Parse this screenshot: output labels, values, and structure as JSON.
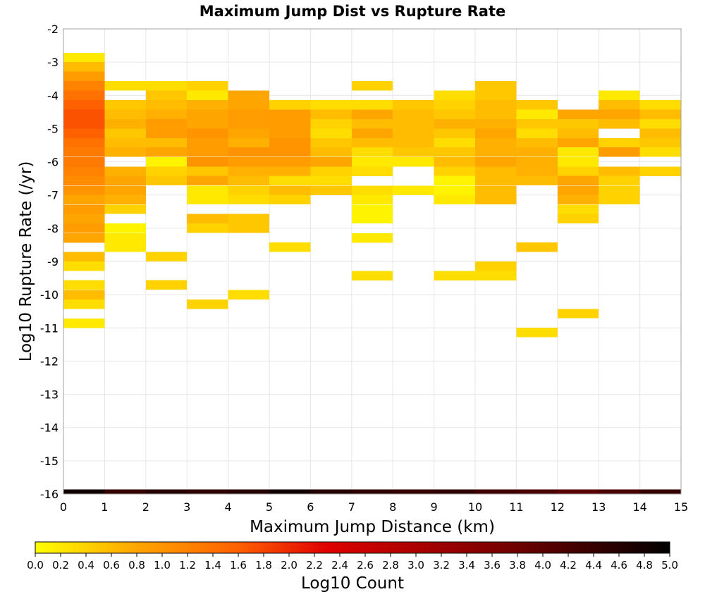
{
  "chart_data": {
    "type": "heatmap",
    "title": "Maximum Jump Dist vs Rupture Rate",
    "xlabel": "Maximum Jump Distance (km)",
    "ylabel": "Log10 Rupture Rate (/yr)",
    "xlim": [
      0,
      15
    ],
    "ylim": [
      -16,
      -2
    ],
    "x_ticks": [
      "0",
      "1",
      "2",
      "3",
      "4",
      "5",
      "6",
      "7",
      "8",
      "9",
      "10",
      "11",
      "12",
      "13",
      "14",
      "15"
    ],
    "y_ticks": [
      "-2",
      "-3",
      "-4",
      "-5",
      "-6",
      "-7",
      "-8",
      "-9",
      "-10",
      "-11",
      "-12",
      "-13",
      "-14",
      "-15",
      "-16"
    ],
    "grid": true,
    "x_bin_width": 1,
    "y_bin_height": 0.2857,
    "colorbar": {
      "label": "Log10 Count",
      "range": [
        0.0,
        5.0
      ],
      "ticks": [
        "0.0",
        "0.2",
        "0.4",
        "0.6",
        "0.8",
        "1.0",
        "1.2",
        "1.4",
        "1.6",
        "1.8",
        "2.0",
        "2.2",
        "2.4",
        "2.6",
        "2.8",
        "3.0",
        "3.2",
        "3.4",
        "3.6",
        "3.8",
        "4.0",
        "4.2",
        "4.4",
        "4.6",
        "4.8",
        "5.0"
      ],
      "colors": [
        "#ffff00",
        "#ffa500",
        "#ff6000",
        "#e00000",
        "#800000",
        "#000000"
      ]
    },
    "cells": [
      {
        "x": 0,
        "y": -2.86,
        "v": 0.2
      },
      {
        "x": 0,
        "y": -3.14,
        "v": 0.6
      },
      {
        "x": 0,
        "y": -3.43,
        "v": 0.9
      },
      {
        "x": 0,
        "y": -3.71,
        "v": 1.2
      },
      {
        "x": 0,
        "y": -4.0,
        "v": 1.4
      },
      {
        "x": 0,
        "y": -4.29,
        "v": 1.6
      },
      {
        "x": 0,
        "y": -4.57,
        "v": 1.7
      },
      {
        "x": 0,
        "y": -4.86,
        "v": 1.7
      },
      {
        "x": 0,
        "y": -5.14,
        "v": 1.6
      },
      {
        "x": 0,
        "y": -5.43,
        "v": 1.4
      },
      {
        "x": 0,
        "y": -5.71,
        "v": 1.3
      },
      {
        "x": 0,
        "y": -6.0,
        "v": 1.3
      },
      {
        "x": 0,
        "y": -6.29,
        "v": 1.2
      },
      {
        "x": 0,
        "y": -6.57,
        "v": 1.1
      },
      {
        "x": 0,
        "y": -6.86,
        "v": 1.0
      },
      {
        "x": 0,
        "y": -7.14,
        "v": 0.8
      },
      {
        "x": 0,
        "y": -7.43,
        "v": 0.9
      },
      {
        "x": 0,
        "y": -7.71,
        "v": 0.8
      },
      {
        "x": 0,
        "y": -8.0,
        "v": 0.9
      },
      {
        "x": 0,
        "y": -8.29,
        "v": 0.8
      },
      {
        "x": 0,
        "y": -8.86,
        "v": 0.6
      },
      {
        "x": 0,
        "y": -9.14,
        "v": 0.3
      },
      {
        "x": 0,
        "y": -9.71,
        "v": 0.3
      },
      {
        "x": 0,
        "y": -10.0,
        "v": 0.6
      },
      {
        "x": 0,
        "y": -10.29,
        "v": 0.3
      },
      {
        "x": 0,
        "y": -10.86,
        "v": 0.2
      },
      {
        "x": 0,
        "y": -16.0,
        "v": 4.8
      },
      {
        "x": 1,
        "y": -3.71,
        "v": 0.3
      },
      {
        "x": 1,
        "y": -4.29,
        "v": 0.5
      },
      {
        "x": 1,
        "y": -4.57,
        "v": 0.6
      },
      {
        "x": 1,
        "y": -4.86,
        "v": 0.7
      },
      {
        "x": 1,
        "y": -5.14,
        "v": 0.5
      },
      {
        "x": 1,
        "y": -5.43,
        "v": 0.6
      },
      {
        "x": 1,
        "y": -5.71,
        "v": 0.7
      },
      {
        "x": 1,
        "y": -6.29,
        "v": 0.7
      },
      {
        "x": 1,
        "y": -6.57,
        "v": 0.8
      },
      {
        "x": 1,
        "y": -6.86,
        "v": 0.8
      },
      {
        "x": 1,
        "y": -7.14,
        "v": 0.7
      },
      {
        "x": 1,
        "y": -7.43,
        "v": 0.4
      },
      {
        "x": 1,
        "y": -8.0,
        "v": 0.1
      },
      {
        "x": 1,
        "y": -8.29,
        "v": 0.2
      },
      {
        "x": 1,
        "y": -8.57,
        "v": 0.2
      },
      {
        "x": 1,
        "y": -16.0,
        "v": 4.4
      },
      {
        "x": 2,
        "y": -3.71,
        "v": 0.3
      },
      {
        "x": 2,
        "y": -4.0,
        "v": 0.5
      },
      {
        "x": 2,
        "y": -4.29,
        "v": 0.6
      },
      {
        "x": 2,
        "y": -4.57,
        "v": 0.7
      },
      {
        "x": 2,
        "y": -4.86,
        "v": 0.9
      },
      {
        "x": 2,
        "y": -5.14,
        "v": 0.9
      },
      {
        "x": 2,
        "y": -5.43,
        "v": 0.6
      },
      {
        "x": 2,
        "y": -5.71,
        "v": 0.8
      },
      {
        "x": 2,
        "y": -6.0,
        "v": 0.1
      },
      {
        "x": 2,
        "y": -6.29,
        "v": 0.4
      },
      {
        "x": 2,
        "y": -6.57,
        "v": 0.5
      },
      {
        "x": 2,
        "y": -8.86,
        "v": 0.4
      },
      {
        "x": 2,
        "y": -9.71,
        "v": 0.4
      },
      {
        "x": 2,
        "y": -16.0,
        "v": 4.6
      },
      {
        "x": 3,
        "y": -3.71,
        "v": 0.4
      },
      {
        "x": 3,
        "y": -4.0,
        "v": 0.2
      },
      {
        "x": 3,
        "y": -4.29,
        "v": 0.7
      },
      {
        "x": 3,
        "y": -4.57,
        "v": 0.8
      },
      {
        "x": 3,
        "y": -4.86,
        "v": 0.8
      },
      {
        "x": 3,
        "y": -5.14,
        "v": 1.0
      },
      {
        "x": 3,
        "y": -5.43,
        "v": 0.9
      },
      {
        "x": 3,
        "y": -5.71,
        "v": 0.9
      },
      {
        "x": 3,
        "y": -6.0,
        "v": 1.0
      },
      {
        "x": 3,
        "y": -6.29,
        "v": 0.5
      },
      {
        "x": 3,
        "y": -6.57,
        "v": 0.8
      },
      {
        "x": 3,
        "y": -6.86,
        "v": 0.2
      },
      {
        "x": 3,
        "y": -7.14,
        "v": 0.2
      },
      {
        "x": 3,
        "y": -7.71,
        "v": 0.6
      },
      {
        "x": 3,
        "y": -8.0,
        "v": 0.4
      },
      {
        "x": 3,
        "y": -10.29,
        "v": 0.4
      },
      {
        "x": 3,
        "y": -16.0,
        "v": 4.5
      },
      {
        "x": 4,
        "y": -4.0,
        "v": 0.8
      },
      {
        "x": 4,
        "y": -4.29,
        "v": 0.8
      },
      {
        "x": 4,
        "y": -4.57,
        "v": 0.9
      },
      {
        "x": 4,
        "y": -4.86,
        "v": 0.9
      },
      {
        "x": 4,
        "y": -5.14,
        "v": 0.8
      },
      {
        "x": 4,
        "y": -5.43,
        "v": 0.7
      },
      {
        "x": 4,
        "y": -5.71,
        "v": 1.0
      },
      {
        "x": 4,
        "y": -6.0,
        "v": 0.9
      },
      {
        "x": 4,
        "y": -6.29,
        "v": 0.7
      },
      {
        "x": 4,
        "y": -6.57,
        "v": 0.6
      },
      {
        "x": 4,
        "y": -6.86,
        "v": 0.4
      },
      {
        "x": 4,
        "y": -7.14,
        "v": 0.3
      },
      {
        "x": 4,
        "y": -7.71,
        "v": 0.5
      },
      {
        "x": 4,
        "y": -8.0,
        "v": 0.5
      },
      {
        "x": 4,
        "y": -10.0,
        "v": 0.3
      },
      {
        "x": 4,
        "y": -16.0,
        "v": 4.6
      },
      {
        "x": 5,
        "y": -4.29,
        "v": 0.4
      },
      {
        "x": 5,
        "y": -4.57,
        "v": 0.9
      },
      {
        "x": 5,
        "y": -4.86,
        "v": 0.9
      },
      {
        "x": 5,
        "y": -5.14,
        "v": 0.9
      },
      {
        "x": 5,
        "y": -5.43,
        "v": 1.0
      },
      {
        "x": 5,
        "y": -5.71,
        "v": 1.0
      },
      {
        "x": 5,
        "y": -6.0,
        "v": 0.9
      },
      {
        "x": 5,
        "y": -6.29,
        "v": 0.7
      },
      {
        "x": 5,
        "y": -6.57,
        "v": 0.3
      },
      {
        "x": 5,
        "y": -6.86,
        "v": 0.6
      },
      {
        "x": 5,
        "y": -7.14,
        "v": 0.4
      },
      {
        "x": 5,
        "y": -8.57,
        "v": 0.3
      },
      {
        "x": 5,
        "y": -16.0,
        "v": 4.8
      },
      {
        "x": 6,
        "y": -4.29,
        "v": 0.3
      },
      {
        "x": 6,
        "y": -4.57,
        "v": 0.6
      },
      {
        "x": 6,
        "y": -4.86,
        "v": 0.4
      },
      {
        "x": 6,
        "y": -5.14,
        "v": 0.3
      },
      {
        "x": 6,
        "y": -5.43,
        "v": 0.5
      },
      {
        "x": 6,
        "y": -5.71,
        "v": 0.6
      },
      {
        "x": 6,
        "y": -6.0,
        "v": 0.8
      },
      {
        "x": 6,
        "y": -6.29,
        "v": 0.4
      },
      {
        "x": 6,
        "y": -6.57,
        "v": 0.3
      },
      {
        "x": 6,
        "y": -6.86,
        "v": 0.5
      },
      {
        "x": 6,
        "y": -16.0,
        "v": 4.6
      },
      {
        "x": 7,
        "y": -3.71,
        "v": 0.4
      },
      {
        "x": 7,
        "y": -4.29,
        "v": 0.3
      },
      {
        "x": 7,
        "y": -4.57,
        "v": 0.8
      },
      {
        "x": 7,
        "y": -4.86,
        "v": 0.6
      },
      {
        "x": 7,
        "y": -5.14,
        "v": 0.8
      },
      {
        "x": 7,
        "y": -5.43,
        "v": 0.6
      },
      {
        "x": 7,
        "y": -5.71,
        "v": 0.3
      },
      {
        "x": 7,
        "y": -6.0,
        "v": 0.2
      },
      {
        "x": 7,
        "y": -6.29,
        "v": 0.3
      },
      {
        "x": 7,
        "y": -6.86,
        "v": 0.3
      },
      {
        "x": 7,
        "y": -7.14,
        "v": 0.2
      },
      {
        "x": 7,
        "y": -7.43,
        "v": 0.1
      },
      {
        "x": 7,
        "y": -7.71,
        "v": 0.1
      },
      {
        "x": 7,
        "y": -8.29,
        "v": 0.2
      },
      {
        "x": 7,
        "y": -9.43,
        "v": 0.3
      },
      {
        "x": 7,
        "y": -16.0,
        "v": 4.5
      },
      {
        "x": 8,
        "y": -4.29,
        "v": 0.5
      },
      {
        "x": 8,
        "y": -4.57,
        "v": 0.6
      },
      {
        "x": 8,
        "y": -4.86,
        "v": 0.6
      },
      {
        "x": 8,
        "y": -5.14,
        "v": 0.6
      },
      {
        "x": 8,
        "y": -5.43,
        "v": 0.6
      },
      {
        "x": 8,
        "y": -5.71,
        "v": 0.5
      },
      {
        "x": 8,
        "y": -6.0,
        "v": 0.2
      },
      {
        "x": 8,
        "y": -6.86,
        "v": 0.2
      },
      {
        "x": 8,
        "y": -16.0,
        "v": 4.4
      },
      {
        "x": 9,
        "y": -4.0,
        "v": 0.3
      },
      {
        "x": 9,
        "y": -4.29,
        "v": 0.4
      },
      {
        "x": 9,
        "y": -4.57,
        "v": 0.5
      },
      {
        "x": 9,
        "y": -4.86,
        "v": 0.7
      },
      {
        "x": 9,
        "y": -5.14,
        "v": 0.5
      },
      {
        "x": 9,
        "y": -5.43,
        "v": 0.3
      },
      {
        "x": 9,
        "y": -5.71,
        "v": 0.5
      },
      {
        "x": 9,
        "y": -6.0,
        "v": 0.6
      },
      {
        "x": 9,
        "y": -6.29,
        "v": 0.4
      },
      {
        "x": 9,
        "y": -6.57,
        "v": 0.1
      },
      {
        "x": 9,
        "y": -6.86,
        "v": 0.1
      },
      {
        "x": 9,
        "y": -7.14,
        "v": 0.2
      },
      {
        "x": 9,
        "y": -9.43,
        "v": 0.3
      },
      {
        "x": 9,
        "y": -16.0,
        "v": 4.5
      },
      {
        "x": 10,
        "y": -3.71,
        "v": 0.5
      },
      {
        "x": 10,
        "y": -4.0,
        "v": 0.5
      },
      {
        "x": 10,
        "y": -4.29,
        "v": 0.6
      },
      {
        "x": 10,
        "y": -4.57,
        "v": 0.6
      },
      {
        "x": 10,
        "y": -4.86,
        "v": 0.7
      },
      {
        "x": 10,
        "y": -5.14,
        "v": 0.8
      },
      {
        "x": 10,
        "y": -5.43,
        "v": 0.7
      },
      {
        "x": 10,
        "y": -5.71,
        "v": 0.7
      },
      {
        "x": 10,
        "y": -6.0,
        "v": 0.8
      },
      {
        "x": 10,
        "y": -6.29,
        "v": 0.6
      },
      {
        "x": 10,
        "y": -6.57,
        "v": 0.6
      },
      {
        "x": 10,
        "y": -6.86,
        "v": 0.6
      },
      {
        "x": 10,
        "y": -7.14,
        "v": 0.6
      },
      {
        "x": 10,
        "y": -9.14,
        "v": 0.4
      },
      {
        "x": 10,
        "y": -9.43,
        "v": 0.3
      },
      {
        "x": 10,
        "y": -16.0,
        "v": 4.3
      },
      {
        "x": 11,
        "y": -4.29,
        "v": 0.5
      },
      {
        "x": 11,
        "y": -4.57,
        "v": 0.2
      },
      {
        "x": 11,
        "y": -4.86,
        "v": 0.5
      },
      {
        "x": 11,
        "y": -5.14,
        "v": 0.3
      },
      {
        "x": 11,
        "y": -5.43,
        "v": 0.6
      },
      {
        "x": 11,
        "y": -5.71,
        "v": 0.7
      },
      {
        "x": 11,
        "y": -6.0,
        "v": 0.7
      },
      {
        "x": 11,
        "y": -6.29,
        "v": 0.7
      },
      {
        "x": 11,
        "y": -6.57,
        "v": 0.6
      },
      {
        "x": 11,
        "y": -8.57,
        "v": 0.5
      },
      {
        "x": 11,
        "y": -11.14,
        "v": 0.3
      },
      {
        "x": 11,
        "y": -16.0,
        "v": 4.2
      },
      {
        "x": 12,
        "y": -4.57,
        "v": 0.8
      },
      {
        "x": 12,
        "y": -4.86,
        "v": 0.5
      },
      {
        "x": 12,
        "y": -5.14,
        "v": 0.6
      },
      {
        "x": 12,
        "y": -5.43,
        "v": 0.8
      },
      {
        "x": 12,
        "y": -5.71,
        "v": 0.2
      },
      {
        "x": 12,
        "y": -6.0,
        "v": 0.2
      },
      {
        "x": 12,
        "y": -6.29,
        "v": 0.4
      },
      {
        "x": 12,
        "y": -6.57,
        "v": 0.8
      },
      {
        "x": 12,
        "y": -6.86,
        "v": 0.8
      },
      {
        "x": 12,
        "y": -7.14,
        "v": 0.7
      },
      {
        "x": 12,
        "y": -7.43,
        "v": 0.3
      },
      {
        "x": 12,
        "y": -7.71,
        "v": 0.4
      },
      {
        "x": 12,
        "y": -10.57,
        "v": 0.4
      },
      {
        "x": 12,
        "y": -16.0,
        "v": 4.0
      },
      {
        "x": 13,
        "y": -4.0,
        "v": 0.2
      },
      {
        "x": 13,
        "y": -4.29,
        "v": 0.6
      },
      {
        "x": 13,
        "y": -4.57,
        "v": 0.8
      },
      {
        "x": 13,
        "y": -4.86,
        "v": 0.6
      },
      {
        "x": 13,
        "y": -5.43,
        "v": 0.4
      },
      {
        "x": 13,
        "y": -5.71,
        "v": 0.9
      },
      {
        "x": 13,
        "y": -6.29,
        "v": 0.6
      },
      {
        "x": 13,
        "y": -6.57,
        "v": 0.4
      },
      {
        "x": 13,
        "y": -6.86,
        "v": 0.4
      },
      {
        "x": 13,
        "y": -7.14,
        "v": 0.4
      },
      {
        "x": 13,
        "y": -16.0,
        "v": 4.2
      },
      {
        "x": 14,
        "y": -4.29,
        "v": 0.3
      },
      {
        "x": 14,
        "y": -4.57,
        "v": 0.6
      },
      {
        "x": 14,
        "y": -4.86,
        "v": 0.3
      },
      {
        "x": 14,
        "y": -5.14,
        "v": 0.6
      },
      {
        "x": 14,
        "y": -5.43,
        "v": 0.5
      },
      {
        "x": 14,
        "y": -5.71,
        "v": 0.3
      },
      {
        "x": 14,
        "y": -6.29,
        "v": 0.4
      },
      {
        "x": 14,
        "y": -16.0,
        "v": 4.4
      }
    ]
  }
}
